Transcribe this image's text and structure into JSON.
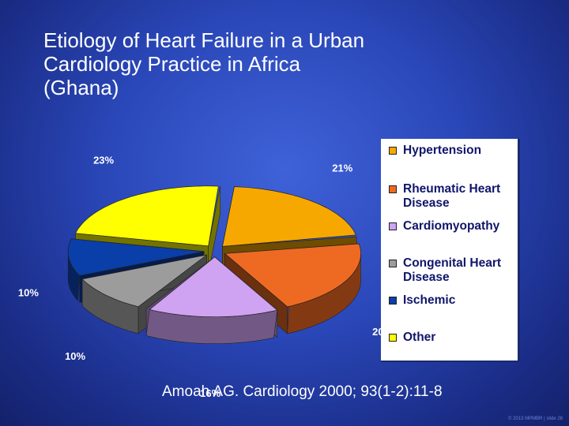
{
  "title_lines": [
    "Etiology of Heart Failure in a Urban",
    "Cardiology Practice in Africa",
    "(Ghana)"
  ],
  "chart_data": {
    "type": "pie",
    "title": "Etiology of Heart Failure in a Urban Cardiology Practice in Africa (Ghana)",
    "unit": "%",
    "legend_position": "right",
    "slices": [
      {
        "label": "Hypertension",
        "value": 21,
        "label_text": "21%",
        "color": "#f7a800"
      },
      {
        "label": "Rheumatic Heart Disease",
        "value": 20,
        "label_text": "20%",
        "color": "#ee6a22"
      },
      {
        "label": "Cardiomyopathy",
        "value": 16,
        "label_text": "16%",
        "color": "#cfa2f2"
      },
      {
        "label": "Congenital Heart Disease",
        "value": 10,
        "label_text": "10%",
        "color": "#9c9c9c"
      },
      {
        "label": "Ischemic",
        "value": 10,
        "label_text": "10%",
        "color": "#0a3ea8"
      },
      {
        "label": "Other",
        "value": 23,
        "label_text": "23%",
        "color": "#ffff00"
      }
    ]
  },
  "citation": "Amoah AG. Cardiology 2000; 93(1-2):11-8",
  "footer": "© 2013 MPMBR | slide 28"
}
